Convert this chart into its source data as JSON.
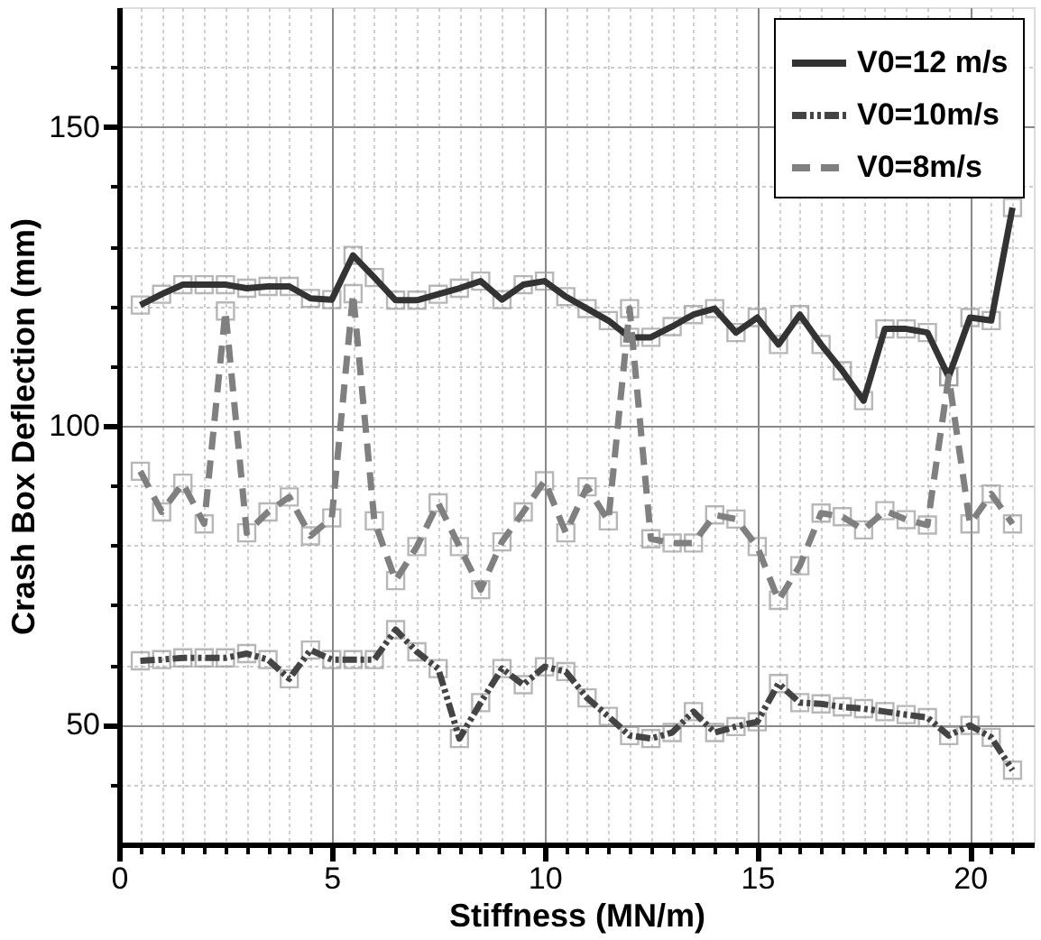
{
  "chart_data": {
    "type": "line",
    "xlabel": "Stiffness (MN/m)",
    "ylabel": "Crash Box Deflection (mm)",
    "x": [
      0.5,
      1,
      1.5,
      2,
      2.5,
      3,
      3.5,
      4,
      4.5,
      5,
      5.5,
      6,
      6.5,
      7,
      7.5,
      8,
      8.5,
      9,
      9.5,
      10,
      10.5,
      11,
      11.5,
      12,
      12.5,
      13,
      13.5,
      14,
      14.5,
      15,
      15.5,
      16,
      16.5,
      17,
      17.5,
      18,
      18.5,
      19,
      19.5,
      20,
      20.5,
      21
    ],
    "series": [
      {
        "name": "V0=12 m/s",
        "color": "#333333",
        "line_style": "solid",
        "values": [
          120.2,
          122,
          123.6,
          123.6,
          123.6,
          123,
          123.3,
          123.3,
          121.3,
          121.1,
          128.5,
          124.8,
          121,
          121,
          122,
          123,
          124.2,
          121.1,
          123.6,
          124.2,
          121.6,
          119.6,
          117.6,
          114.8,
          114.8,
          116.6,
          118.6,
          119.6,
          115.6,
          118.1,
          113.6,
          118.6,
          113.6,
          109.2,
          104.2,
          116.2,
          116.2,
          115.6,
          108.2,
          118.1,
          117.6,
          136.5
        ]
      },
      {
        "name": "V0=10m/s",
        "color": "#444444",
        "line_style": "dotted",
        "values": [
          60.7,
          60.9,
          61.2,
          61.2,
          61.2,
          61.9,
          60.9,
          57.7,
          62.5,
          60.9,
          60.9,
          60.9,
          65.9,
          62.2,
          59.4,
          47.7,
          53.7,
          59.4,
          56.7,
          59.7,
          58.9,
          54.5,
          51.4,
          48.2,
          47.7,
          48.7,
          52.2,
          48.7,
          49.7,
          50.5,
          56.9,
          53.7,
          53.5,
          53,
          52.7,
          52.2,
          51.7,
          51.2,
          48.2,
          49.9,
          47.9,
          42.4
        ]
      },
      {
        "name": "V0=8m/s",
        "color": "#808080",
        "line_style": "dashed",
        "values": [
          92.4,
          85.6,
          90.4,
          83.6,
          119.2,
          82.1,
          85.6,
          88.1,
          81.6,
          84.6,
          122.1,
          84.1,
          74.1,
          79.8,
          87.1,
          79.8,
          72.6,
          80.6,
          85.6,
          90.8,
          82.1,
          89.8,
          84.1,
          119.6,
          81.1,
          80.4,
          80.4,
          85.1,
          84.4,
          79.8,
          70.8,
          76.6,
          85.4,
          84.8,
          82.6,
          85.8,
          84.3,
          83.4,
          108.2,
          83.6,
          88.6,
          83.6
        ]
      }
    ],
    "marker": "square",
    "legend": "top right",
    "grid": true,
    "xlim": [
      0,
      21.5
    ],
    "ylim": [
      30,
      170
    ],
    "xticks": [
      {
        "value": 0,
        "label": "0"
      },
      {
        "value": 0.5,
        "label": null
      },
      {
        "value": 1,
        "label": null
      },
      {
        "value": 1.5,
        "label": null
      },
      {
        "value": 2,
        "label": null
      },
      {
        "value": 2.5,
        "label": null
      },
      {
        "value": 3,
        "label": null
      },
      {
        "value": 3.5,
        "label": null
      },
      {
        "value": 4,
        "label": null
      },
      {
        "value": 4.5,
        "label": null
      },
      {
        "value": 5,
        "label": "5"
      },
      {
        "value": 5.5,
        "label": null
      },
      {
        "value": 6,
        "label": null
      },
      {
        "value": 6.5,
        "label": null
      },
      {
        "value": 7,
        "label": null
      },
      {
        "value": 7.5,
        "label": null
      },
      {
        "value": 8,
        "label": null
      },
      {
        "value": 8.5,
        "label": null
      },
      {
        "value": 9,
        "label": null
      },
      {
        "value": 9.5,
        "label": null
      },
      {
        "value": 10,
        "label": "10"
      },
      {
        "value": 10.5,
        "label": null
      },
      {
        "value": 11,
        "label": null
      },
      {
        "value": 11.5,
        "label": null
      },
      {
        "value": 12,
        "label": null
      },
      {
        "value": 12.5,
        "label": null
      },
      {
        "value": 13,
        "label": null
      },
      {
        "value": 13.5,
        "label": null
      },
      {
        "value": 14,
        "label": null
      },
      {
        "value": 14.5,
        "label": null
      },
      {
        "value": 15,
        "label": "15"
      },
      {
        "value": 15.5,
        "label": null
      },
      {
        "value": 16,
        "label": null
      },
      {
        "value": 16.5,
        "label": null
      },
      {
        "value": 17,
        "label": null
      },
      {
        "value": 17.5,
        "label": null
      },
      {
        "value": 18,
        "label": null
      },
      {
        "value": 18.5,
        "label": null
      },
      {
        "value": 19,
        "label": null
      },
      {
        "value": 19.5,
        "label": null
      },
      {
        "value": 20,
        "label": "20"
      },
      {
        "value": 20.5,
        "label": null
      },
      {
        "value": 21,
        "label": null
      }
    ],
    "yticks": [
      {
        "value": 40,
        "label": null
      },
      {
        "value": 50,
        "label": "50"
      },
      {
        "value": 60,
        "label": null
      },
      {
        "value": 70,
        "label": null
      },
      {
        "value": 80,
        "label": null
      },
      {
        "value": 90,
        "label": null
      },
      {
        "value": 100,
        "label": "100"
      },
      {
        "value": 110,
        "label": null
      },
      {
        "value": 120,
        "label": null
      },
      {
        "value": 130,
        "label": null
      },
      {
        "value": 140,
        "label": null
      },
      {
        "value": 150,
        "label": "150"
      },
      {
        "value": 160,
        "label": null
      }
    ]
  }
}
